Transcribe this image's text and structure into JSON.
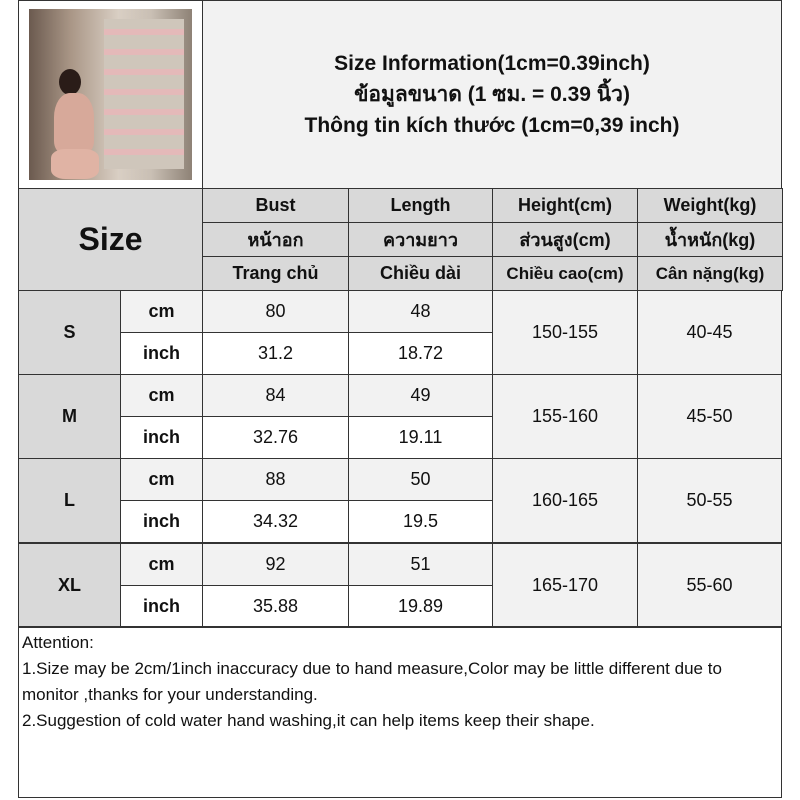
{
  "title": {
    "line1": "Size Information(1cm=0.39inch)",
    "line2": "ข้อมูลขนาด (1 ซม. = 0.39 นิ้ว)",
    "line3": "Thông tin kích thước (1cm=0,39 inch)"
  },
  "colors": {
    "header_bg": "#d9d9d9",
    "light_bg": "#f2f2f2",
    "border": "#333333"
  },
  "table": {
    "size_label": "Size",
    "columns": [
      {
        "en": "Bust",
        "th": "หน้าอก",
        "vi": "Trang chủ"
      },
      {
        "en": "Length",
        "th": "ความยาว",
        "vi": "Chiều dài"
      },
      {
        "en": "Height(cm)",
        "th": "ส่วนสูง(cm)",
        "vi": "Chiều cao(cm)"
      },
      {
        "en": "Weight(kg)",
        "th": "น้ำหนัก(kg)",
        "vi": "Cân nặng(kg)"
      }
    ],
    "rows": [
      {
        "size": "S",
        "cm_label": "cm",
        "inch_label": "inch",
        "bust_cm": "80",
        "length_cm": "48",
        "bust_inch": "31.2",
        "length_inch": "18.72",
        "height": "150-155",
        "weight": "40-45"
      },
      {
        "size": "M",
        "cm_label": "cm",
        "inch_label": "inch",
        "bust_cm": "84",
        "length_cm": "49",
        "bust_inch": "32.76",
        "length_inch": "19.11",
        "height": "155-160",
        "weight": "45-50"
      },
      {
        "size": "L",
        "cm_label": "cm",
        "inch_label": "inch",
        "bust_cm": "88",
        "length_cm": "50",
        "bust_inch": "34.32",
        "length_inch": "19.5",
        "height": "160-165",
        "weight": "50-55"
      },
      {
        "size": "XL",
        "cm_label": "cm",
        "inch_label": "inch",
        "bust_cm": "92",
        "length_cm": "51",
        "bust_inch": "35.88",
        "length_inch": "19.89",
        "height": "165-170",
        "weight": "55-60"
      }
    ]
  },
  "attention": {
    "heading": "Attention:",
    "note1": "1.Size may be 2cm/1inch inaccuracy due to hand measure,Color may be little different due to monitor ,thanks for your understanding.",
    "note2": "2.Suggestion of cold water hand washing,it can help items keep their shape."
  }
}
